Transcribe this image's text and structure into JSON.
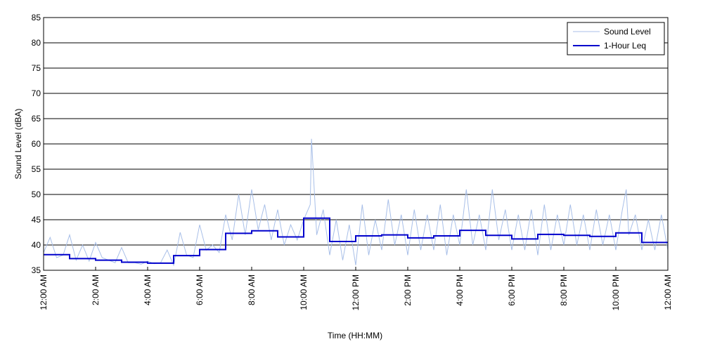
{
  "chart_data": {
    "type": "line",
    "title": "",
    "xlabel": "Time (HH:MM)",
    "ylabel": "Sound Level (dBA)",
    "ylim": [
      35,
      85
    ],
    "yticks": [
      35,
      40,
      45,
      50,
      55,
      60,
      65,
      70,
      75,
      80,
      85
    ],
    "xlim_hours": [
      0,
      24
    ],
    "xticks": [
      {
        "hour": 0,
        "label": "12:00 AM"
      },
      {
        "hour": 2,
        "label": "2:00 AM"
      },
      {
        "hour": 4,
        "label": "4:00 AM"
      },
      {
        "hour": 6,
        "label": "6:00 AM"
      },
      {
        "hour": 8,
        "label": "8:00 AM"
      },
      {
        "hour": 10,
        "label": "10:00 AM"
      },
      {
        "hour": 12,
        "label": "12:00 PM"
      },
      {
        "hour": 14,
        "label": "2:00 PM"
      },
      {
        "hour": 16,
        "label": "4:00 PM"
      },
      {
        "hour": 18,
        "label": "6:00 PM"
      },
      {
        "hour": 20,
        "label": "8:00 PM"
      },
      {
        "hour": 22,
        "label": "10:00 PM"
      },
      {
        "hour": 24,
        "label": "12:00 AM"
      }
    ],
    "grid": "horizontal",
    "legend_position": "top-right",
    "series": [
      {
        "name": "Sound Level",
        "style": "thin-line",
        "color": "#a8bfe8",
        "hour": [
          0,
          0.25,
          0.5,
          0.75,
          1,
          1.25,
          1.5,
          1.75,
          2,
          2.25,
          2.5,
          2.75,
          3,
          3.25,
          3.5,
          3.75,
          4,
          4.25,
          4.5,
          4.75,
          5,
          5.25,
          5.5,
          5.75,
          6,
          6.25,
          6.5,
          6.75,
          7,
          7.25,
          7.5,
          7.75,
          8,
          8.25,
          8.5,
          8.75,
          9,
          9.25,
          9.5,
          9.75,
          10,
          10.25,
          10.3,
          10.5,
          10.75,
          11,
          11.25,
          11.5,
          11.75,
          12,
          12.25,
          12.5,
          12.75,
          13,
          13.25,
          13.5,
          13.75,
          14,
          14.25,
          14.5,
          14.75,
          15,
          15.25,
          15.5,
          15.75,
          16,
          16.25,
          16.5,
          16.75,
          17,
          17.25,
          17.5,
          17.75,
          18,
          18.25,
          18.5,
          18.75,
          19,
          19.25,
          19.5,
          19.75,
          20,
          20.25,
          20.5,
          20.75,
          21,
          21.25,
          21.5,
          21.75,
          22,
          22.25,
          22.4,
          22.5,
          22.75,
          23,
          23.25,
          23.5,
          23.75,
          24
        ],
        "values": [
          38.5,
          41.5,
          37.5,
          38,
          42,
          37,
          40,
          36.8,
          40.5,
          37.5,
          37,
          36.5,
          39.5,
          36.5,
          36.5,
          36.2,
          36.8,
          36.3,
          36.5,
          39,
          36,
          42.5,
          38,
          37.5,
          44,
          39,
          40,
          38.5,
          46,
          41,
          50,
          42,
          51,
          43,
          48,
          41,
          47,
          40,
          44,
          41,
          45,
          48,
          61,
          42,
          47,
          38,
          45,
          37,
          44,
          36,
          48,
          38,
          45,
          39,
          49,
          40,
          46,
          38,
          47,
          39,
          46,
          39,
          48,
          38,
          46,
          40,
          51,
          40,
          46,
          39,
          51,
          41,
          47,
          39,
          46,
          39,
          47,
          38,
          48,
          39,
          46,
          40,
          48,
          40,
          46,
          39,
          47,
          40,
          46,
          39,
          47,
          51,
          42,
          46,
          39,
          45,
          39,
          46,
          39,
          45
        ]
      },
      {
        "name": "1-Hour Leq",
        "style": "step",
        "color": "#0000cc",
        "hour_start": [
          0,
          1,
          2,
          3,
          4,
          5,
          6,
          7,
          8,
          9,
          10,
          11,
          12,
          13,
          14,
          15,
          16,
          17,
          18,
          19,
          20,
          21,
          22,
          23
        ],
        "values": [
          38.1,
          37.3,
          37.0,
          36.6,
          36.4,
          37.9,
          39.1,
          42.3,
          42.8,
          41.6,
          45.3,
          40.7,
          41.8,
          42.0,
          41.4,
          41.8,
          42.9,
          41.9,
          41.2,
          42.1,
          41.9,
          41.7,
          42.4,
          40.5
        ]
      }
    ]
  }
}
